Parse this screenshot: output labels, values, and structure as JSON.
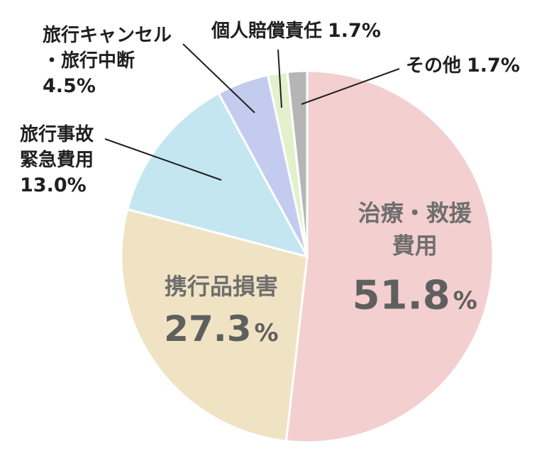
{
  "chart_data": {
    "type": "pie",
    "title": "",
    "legend": "none",
    "slices": [
      {
        "label_lines": [
          "治療・救援",
          "費用"
        ],
        "value": 51.8,
        "value_text": "51.8",
        "unit": "%",
        "color": "#f3cfcf"
      },
      {
        "label_lines": [
          "携行品損害"
        ],
        "value": 27.3,
        "value_text": "27.3",
        "unit": "%",
        "color": "#f0e3c3"
      },
      {
        "label_lines": [
          "旅行事故",
          "緊急費用"
        ],
        "value": 13.0,
        "value_text": "13.0",
        "unit": "%",
        "color": "#c4e6f1"
      },
      {
        "label_lines": [
          "旅行キャンセル",
          "・旅行中断"
        ],
        "value": 4.5,
        "value_text": "4.5",
        "unit": "%",
        "color": "#c3ccef"
      },
      {
        "label_lines": [
          "個人賠償責任"
        ],
        "value": 1.7,
        "value_text": "1.7",
        "unit": "%",
        "color": "#e2f1cb"
      },
      {
        "label_lines": [
          "その他"
        ],
        "value": 1.7,
        "value_text": "1.7",
        "unit": "%",
        "color": "#b5b5b5"
      }
    ]
  }
}
